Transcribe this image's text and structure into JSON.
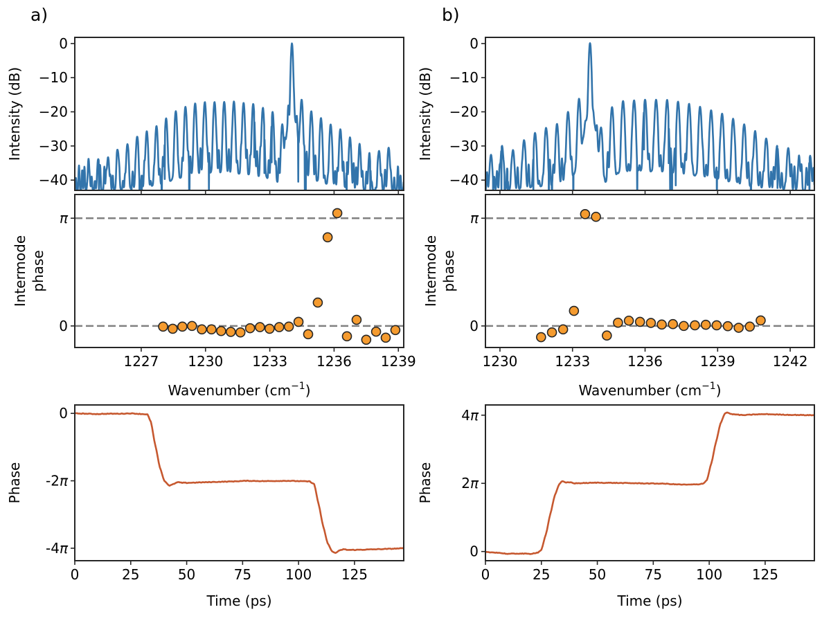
{
  "chart_data": [
    {
      "id": "a_spectrum",
      "panel": "a)",
      "type": "line",
      "title": "",
      "xlabel": "",
      "ylabel": "Intensity (dB)",
      "xlim": [
        1223.9,
        1239.25
      ],
      "ylim": [
        -43,
        1.8
      ],
      "yticks": [
        0,
        -10,
        -20,
        -30,
        -40
      ],
      "ytick_labels": [
        "0",
        "−10",
        "−20",
        "−30",
        "−40"
      ],
      "xticks": [
        1227,
        1230,
        1233,
        1236,
        1239
      ],
      "color": "#3274ab",
      "comb": {
        "main_peak": {
          "x": 1235.9,
          "y": 0
        },
        "spacing": 0.4516,
        "peaks_x_start": 1224.55,
        "peak_heights_db": [
          -37.2,
          -34.6,
          -33.8,
          -31.8,
          -29.7,
          -27.5,
          -25.8,
          -24.3,
          -22.0,
          -19.9,
          -18.7,
          -17.6,
          -17.2,
          -17.2,
          -17.2,
          -17.2,
          -17.6,
          -17.8,
          -19.1,
          -20.3,
          -23.9,
          0,
          -16.5,
          -19.9,
          -21.9,
          -23.8,
          -25.2,
          -27.8,
          -30.4,
          -33.9,
          -31.8,
          -30.9
        ],
        "noise_floor_db": -38
      }
    },
    {
      "id": "a_intermode_phase",
      "panel": "a)",
      "type": "scatter",
      "xlabel": "Wavenumber (cm⁻¹)",
      "ylabel": "Intermode phase",
      "xlim": [
        1223.9,
        1239.25
      ],
      "ylim_pi": [
        -0.2,
        1.22
      ],
      "yticks_pi": [
        0,
        1
      ],
      "ytick_labels": [
        "0",
        "π"
      ],
      "xticks": [
        1227,
        1230,
        1233,
        1236,
        1239
      ],
      "xtick_labels": [
        "1227",
        "1230",
        "1233",
        "1236",
        "1239"
      ],
      "reference_lines_pi": [
        0,
        1
      ],
      "x": [
        1228.02,
        1228.47,
        1228.92,
        1229.37,
        1229.83,
        1230.28,
        1230.73,
        1231.18,
        1231.63,
        1232.08,
        1232.54,
        1232.99,
        1233.44,
        1233.89,
        1234.34,
        1234.79,
        1235.24,
        1235.7,
        1236.15,
        1236.6,
        1237.05,
        1237.5,
        1237.96,
        1238.41,
        1238.86
      ],
      "y_pi": [
        -0.006,
        -0.026,
        -0.006,
        0.0,
        -0.032,
        -0.032,
        -0.047,
        -0.055,
        -0.06,
        -0.021,
        -0.011,
        -0.026,
        -0.011,
        -0.006,
        0.038,
        -0.077,
        0.217,
        0.823,
        1.047,
        -0.096,
        0.057,
        -0.128,
        -0.053,
        -0.109,
        -0.038
      ],
      "color": "#f59b2f"
    },
    {
      "id": "a_time_phase",
      "panel": "a)",
      "type": "line",
      "xlabel": "Time (ps)",
      "ylabel": "Phase",
      "xlim": [
        0,
        147
      ],
      "ylim_pi": [
        -4.37,
        0.25
      ],
      "yticks_pi": [
        0,
        -2,
        -4
      ],
      "ytick_labels": [
        "0",
        "-2π",
        "-4π"
      ],
      "xticks": [
        0,
        25,
        50,
        75,
        100,
        125
      ],
      "xtick_labels": [
        "0",
        "25",
        "50",
        "75",
        "100",
        "125"
      ],
      "x": [
        0,
        5,
        10,
        15,
        20,
        25,
        30,
        32.5,
        34,
        36,
        38,
        40,
        42.3,
        44,
        46,
        48,
        50,
        55,
        60,
        70,
        77,
        85,
        95,
        100,
        105,
        107,
        109,
        111,
        113,
        115,
        116.5,
        118,
        120,
        122,
        125,
        130,
        140,
        147
      ],
      "y_pi": [
        0.0,
        -0.01,
        -0.02,
        -0.01,
        -0.01,
        0.0,
        -0.02,
        -0.03,
        -0.25,
        -0.95,
        -1.6,
        -2.0,
        -2.15,
        -2.1,
        -2.04,
        -2.06,
        -2.06,
        -2.05,
        -2.04,
        -2.02,
        -2.0,
        -2.01,
        -2.0,
        -2.01,
        -2.02,
        -2.1,
        -2.7,
        -3.35,
        -3.85,
        -4.1,
        -4.14,
        -4.08,
        -4.03,
        -4.05,
        -4.05,
        -4.04,
        -4.02,
        -4.0
      ],
      "color": "#c6582f"
    },
    {
      "id": "b_spectrum",
      "panel": "b)",
      "type": "line",
      "ylabel": "Intensity (dB)",
      "xlim": [
        1229.4,
        1243.0
      ],
      "ylim": [
        -43,
        1.8
      ],
      "yticks": [
        0,
        -10,
        -20,
        -30,
        -40
      ],
      "ytick_labels": [
        "0",
        "−10",
        "−20",
        "−30",
        "−40"
      ],
      "xticks": [
        1230,
        1233,
        1236,
        1239,
        1242
      ],
      "color": "#3274ab",
      "comb": {
        "main_peak": {
          "x": 1233.72,
          "y": 0
        },
        "spacing": 0.455,
        "peaks_x_start": 1229.63,
        "peak_heights_db": [
          -33.0,
          -30.2,
          -31.5,
          -28.5,
          -26.3,
          -24.8,
          -23.8,
          -20.1,
          -16.5,
          0,
          -24.8,
          -18.7,
          -16.9,
          -16.7,
          -16.5,
          -16.5,
          -16.7,
          -17.2,
          -17.8,
          -18.7,
          -19.6,
          -20.6,
          -22.1,
          -23.8,
          -25.8,
          -28.0,
          -30.3,
          -31.1,
          -35.3,
          -33.7
        ],
        "noise_floor_db": -38
      }
    },
    {
      "id": "b_intermode_phase",
      "panel": "b)",
      "type": "scatter",
      "xlabel": "Wavenumber (cm⁻¹)",
      "ylabel": "Intermode phase",
      "xlim": [
        1229.4,
        1243.0
      ],
      "ylim_pi": [
        -0.2,
        1.22
      ],
      "yticks_pi": [
        0,
        1
      ],
      "ytick_labels": [
        "0",
        "π"
      ],
      "xticks": [
        1230,
        1233,
        1236,
        1239,
        1242
      ],
      "xtick_labels": [
        "1230",
        "1233",
        "1236",
        "1239",
        "1242"
      ],
      "reference_lines_pi": [
        0,
        1
      ],
      "x": [
        1231.7,
        1232.15,
        1232.61,
        1233.06,
        1233.52,
        1233.97,
        1234.42,
        1234.88,
        1235.33,
        1235.79,
        1236.24,
        1236.69,
        1237.15,
        1237.6,
        1238.06,
        1238.51,
        1238.96,
        1239.42,
        1239.87,
        1240.33,
        1240.78
      ],
      "y_pi": [
        -0.104,
        -0.06,
        -0.032,
        0.14,
        1.038,
        1.013,
        -0.089,
        0.03,
        0.049,
        0.038,
        0.028,
        0.013,
        0.017,
        0.0,
        0.006,
        0.011,
        0.006,
        -0.002,
        -0.017,
        -0.006,
        0.051
      ],
      "color": "#f59b2f"
    },
    {
      "id": "b_time_phase",
      "panel": "b)",
      "type": "line",
      "xlabel": "Time (ps)",
      "ylabel": "Phase",
      "xlim": [
        0,
        147
      ],
      "ylim_pi": [
        -0.27,
        4.3
      ],
      "yticks_pi": [
        0,
        2,
        4
      ],
      "ytick_labels": [
        "0",
        "2π",
        "4π"
      ],
      "xticks": [
        0,
        25,
        50,
        75,
        100,
        125
      ],
      "xtick_labels": [
        "0",
        "25",
        "50",
        "75",
        "100",
        "125"
      ],
      "x": [
        0,
        5,
        10,
        15,
        20,
        23.5,
        25,
        27,
        29,
        31,
        33,
        34.3,
        36,
        38,
        40,
        45,
        50,
        60,
        70,
        80,
        85,
        90,
        95,
        97.5,
        99,
        101,
        103,
        105,
        107,
        108,
        110,
        112,
        115,
        120,
        125,
        135,
        147
      ],
      "y_pi": [
        -0.02,
        -0.03,
        -0.07,
        -0.06,
        -0.07,
        -0.03,
        0.05,
        0.5,
        1.1,
        1.65,
        1.98,
        2.06,
        2.02,
        2.03,
        2.0,
        2.01,
        2.02,
        2.01,
        2.0,
        1.99,
        1.97,
        1.96,
        1.97,
        2.0,
        2.1,
        2.6,
        3.2,
        3.75,
        4.05,
        4.08,
        4.03,
        4.02,
        4.0,
        4.02,
        4.03,
        4.01,
        4.0
      ],
      "color": "#c6582f"
    }
  ],
  "panels": {
    "a": {
      "label": "a)"
    },
    "b": {
      "label": "b)"
    }
  },
  "labels": {
    "intensity": "Intensity (dB)",
    "intermode_line1": "Intermode",
    "intermode_line2": "phase",
    "wavenumber": "Wavenumber (cm",
    "wavenumber_exp": "−1",
    "wavenumber_close": ")",
    "phase": "Phase",
    "time": "Time (ps)"
  }
}
